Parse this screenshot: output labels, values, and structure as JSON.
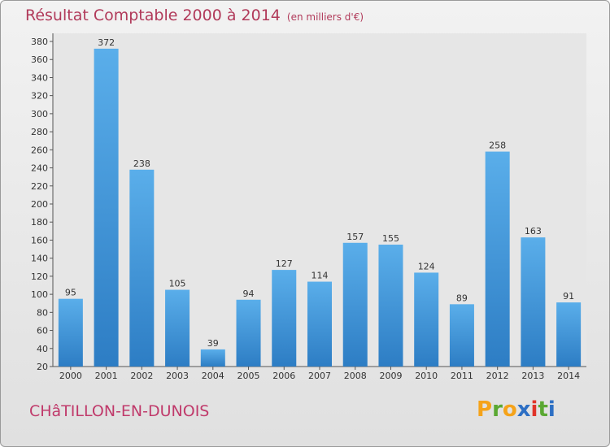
{
  "title": "Résultat Comptable 2000 à 2014",
  "unit_note": "(en milliers d'€)",
  "city": "CHâTILLON-EN-DUNOIS",
  "logo": {
    "letters": [
      "P",
      "r",
      "o",
      "x",
      "i",
      "t",
      "i"
    ],
    "colors": [
      "#f5a31a",
      "#5aa832",
      "#f5a31a",
      "#2d6fc4",
      "#e0342a",
      "#5aa832",
      "#2d6fc4"
    ]
  },
  "colors": {
    "bar_top": "#5aaeea",
    "bar_bottom": "#2d7dc4",
    "title": "#b13a5a",
    "axis": "#555555"
  },
  "chart_data": {
    "type": "bar",
    "title": "Résultat Comptable 2000 à 2014",
    "subtitle": "(en milliers d'€)",
    "categories": [
      "2000",
      "2001",
      "2002",
      "2003",
      "2004",
      "2005",
      "2006",
      "2007",
      "2008",
      "2009",
      "2010",
      "2011",
      "2012",
      "2013",
      "2014"
    ],
    "values": [
      95,
      372,
      238,
      105,
      39,
      94,
      127,
      114,
      157,
      155,
      124,
      89,
      258,
      163,
      91
    ],
    "ylim": [
      20,
      380
    ],
    "yticks": [
      20,
      40,
      60,
      80,
      100,
      120,
      140,
      160,
      180,
      200,
      220,
      240,
      260,
      280,
      300,
      320,
      340,
      360,
      380
    ],
    "grid": false,
    "data_labels": true
  }
}
